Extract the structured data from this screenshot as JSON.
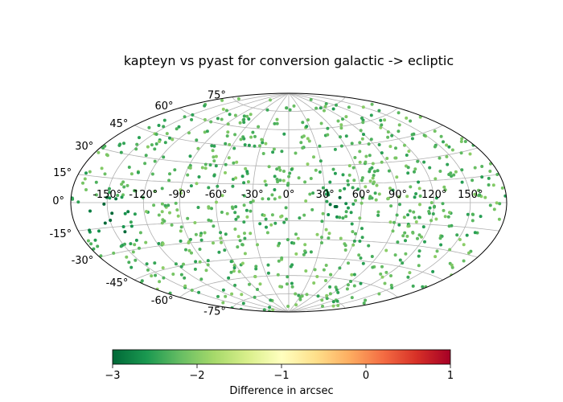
{
  "chart_data": {
    "type": "scatter",
    "projection": "aitoff",
    "title": "kapteyn vs pyast for conversion galactic -> ecliptic",
    "x_ticks": [
      "-150°",
      "-120°",
      "-90°",
      "-60°",
      "-30°",
      "0°",
      "30°",
      "60°",
      "90°",
      "120°",
      "150°"
    ],
    "y_ticks": [
      "75°",
      "60°",
      "45°",
      "30°",
      "15°",
      "0°",
      "-15°",
      "-30°",
      "-45°",
      "-60°",
      "-75°"
    ],
    "grid": true,
    "colorbar": {
      "label": "Difference in arcsec",
      "range": [
        -3,
        1
      ],
      "ticks": [
        "−3",
        "−2",
        "−1",
        "0",
        "1"
      ],
      "colormap": "RdYlGn_r",
      "colors": [
        "#006837",
        "#1a9850",
        "#66bd63",
        "#a6d96a",
        "#d9ef8b",
        "#ffffbf",
        "#fee08b",
        "#fdae61",
        "#f46d43",
        "#d73027",
        "#a50026"
      ]
    },
    "points_summary": "approximately 800 points spread uniformly over the sky; most values between -2.5 and -1.5 arcsec, darkest (≈ -3) near longitude -150° latitude -10° and near longitude 40° latitude 0°"
  }
}
